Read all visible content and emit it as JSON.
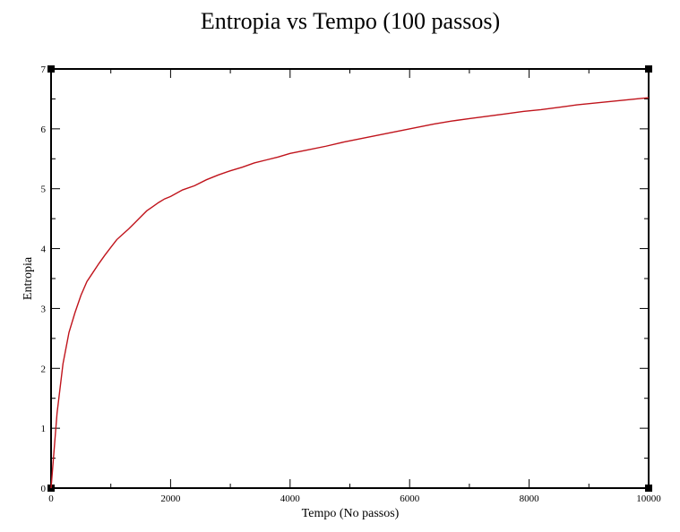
{
  "chart_data": {
    "type": "line",
    "title": "Entropia vs Tempo (100 passos)",
    "xlabel": "Tempo (No passos)",
    "ylabel": "Entropia",
    "xlim": [
      0,
      10000
    ],
    "ylim": [
      0,
      7
    ],
    "x_ticks": [
      0,
      2000,
      4000,
      6000,
      8000,
      10000
    ],
    "y_ticks": [
      0,
      1,
      2,
      3,
      4,
      5,
      6,
      7
    ],
    "grid": false,
    "line_color": "#c0141c",
    "series": [
      {
        "x": [
          0,
          100,
          200,
          300,
          400,
          500,
          600,
          700,
          800,
          900,
          1000,
          1100,
          1200,
          1300,
          1400,
          1500,
          1600,
          1700,
          1800,
          1900,
          2000,
          2200,
          2400,
          2600,
          2800,
          3000,
          3200,
          3400,
          3600,
          3800,
          4000,
          4300,
          4600,
          4900,
          5200,
          5500,
          5800,
          6100,
          6400,
          6700,
          7000,
          7300,
          7600,
          7900,
          8200,
          8500,
          8800,
          9100,
          9400,
          9700,
          10000
        ],
        "values": [
          0.0,
          1.25,
          2.08,
          2.6,
          2.93,
          3.22,
          3.45,
          3.6,
          3.75,
          3.89,
          4.02,
          4.15,
          4.24,
          4.33,
          4.43,
          4.53,
          4.63,
          4.7,
          4.77,
          4.83,
          4.87,
          4.98,
          5.05,
          5.15,
          5.23,
          5.3,
          5.36,
          5.43,
          5.48,
          5.53,
          5.59,
          5.65,
          5.71,
          5.78,
          5.84,
          5.9,
          5.96,
          6.02,
          6.08,
          6.13,
          6.17,
          6.21,
          6.25,
          6.29,
          6.32,
          6.36,
          6.4,
          6.43,
          6.46,
          6.49,
          6.52
        ]
      }
    ]
  }
}
